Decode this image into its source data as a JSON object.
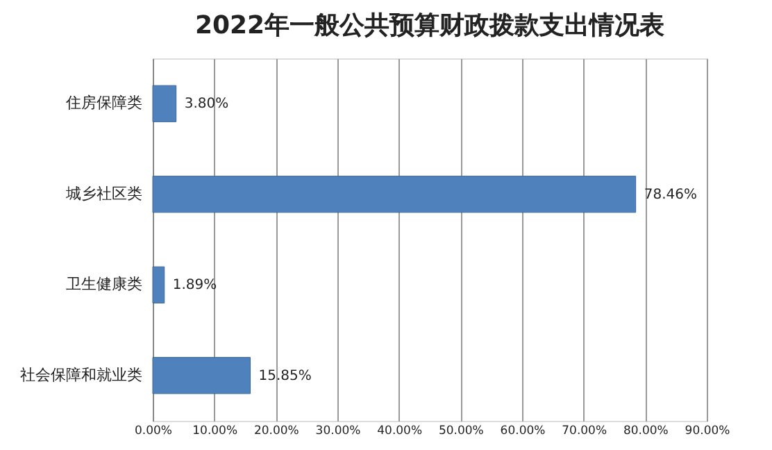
{
  "chart_data": {
    "type": "bar",
    "orientation": "horizontal",
    "title": "2022年一般公共预算财政拨款支出情况表",
    "categories": [
      "住房保障类",
      "城乡社区类",
      "卫生健康类",
      "社会保障和就业类"
    ],
    "values": [
      3.8,
      78.46,
      1.89,
      15.85
    ],
    "color": "#4f81bd",
    "value_labels": [
      "3.80%",
      "78.46%",
      "1.89%",
      "15.85%"
    ],
    "xlim": [
      0,
      90
    ],
    "xticks": [
      {
        "value": 0,
        "label": "0.00%"
      },
      {
        "value": 10,
        "label": "10.00%"
      },
      {
        "value": 20,
        "label": "20.00%"
      },
      {
        "value": 30,
        "label": "30.00%"
      },
      {
        "value": 40,
        "label": "40.00%"
      },
      {
        "value": 50,
        "label": "50.00%"
      },
      {
        "value": 60,
        "label": "60.00%"
      },
      {
        "value": 70,
        "label": "70.00%"
      },
      {
        "value": 80,
        "label": "80.00%"
      },
      {
        "value": 90,
        "label": "90.00%"
      }
    ],
    "grid": "x"
  }
}
